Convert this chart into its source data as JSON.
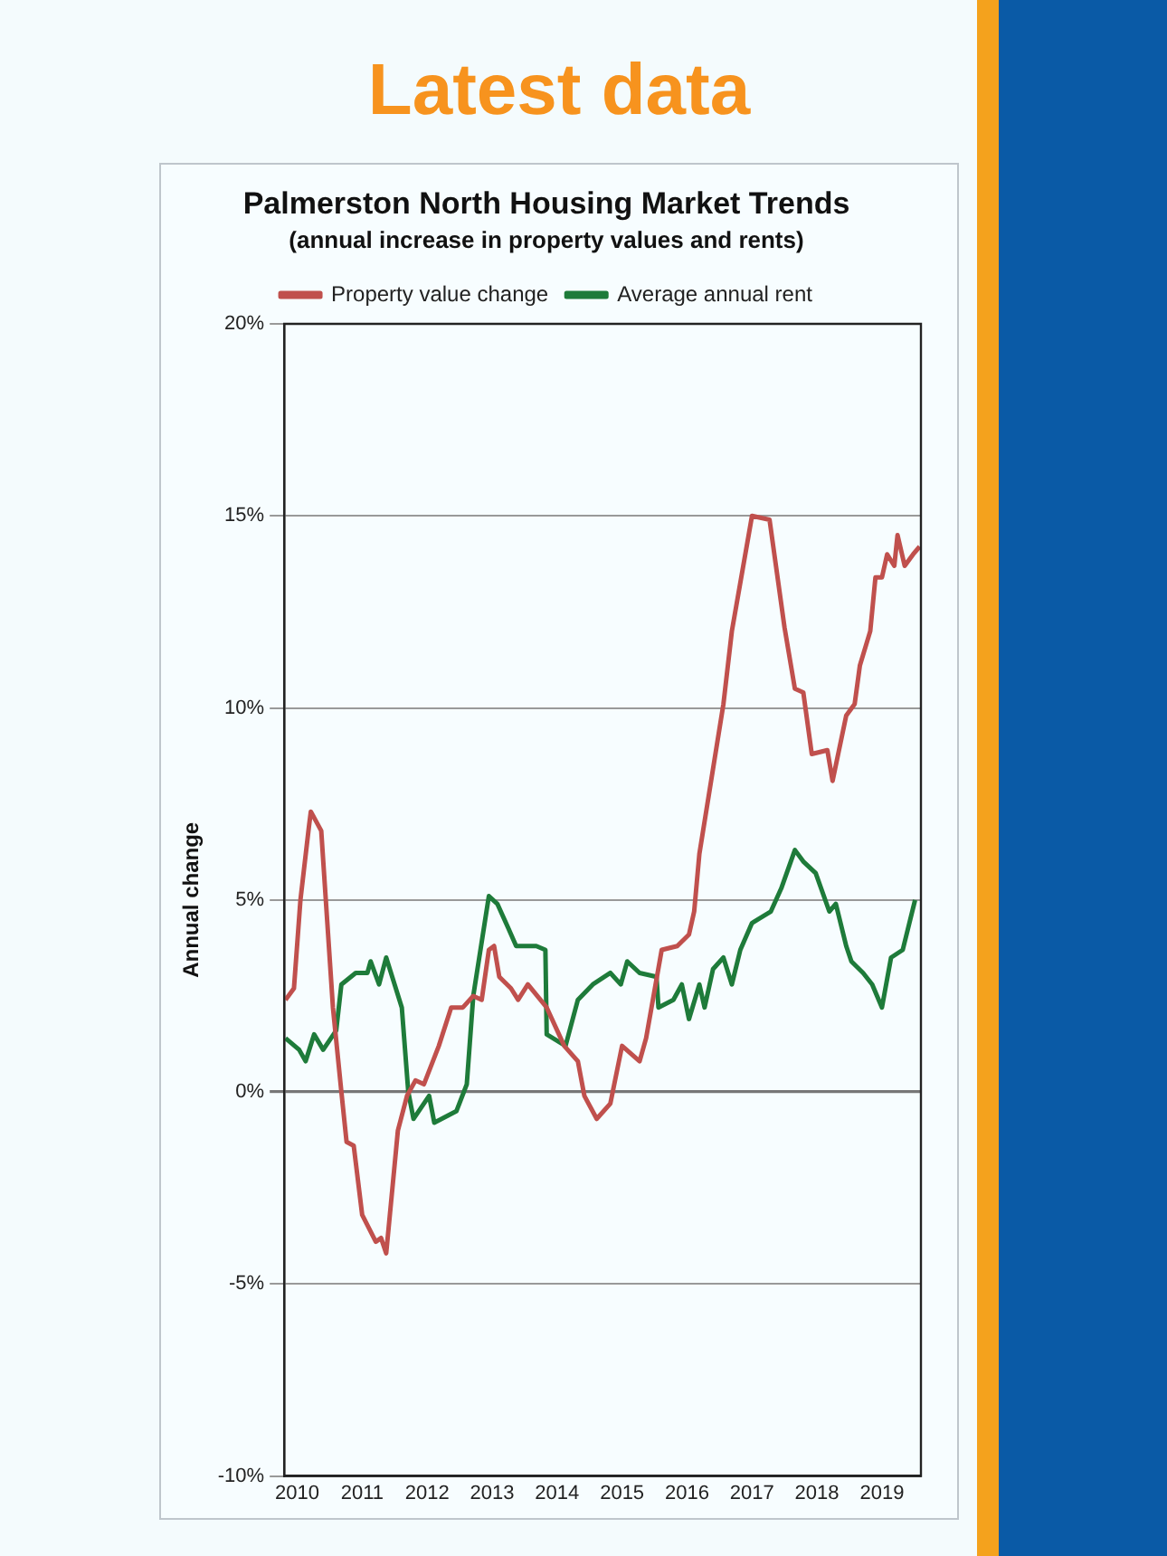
{
  "chart_data": {
    "type": "line",
    "title": "Palmerston North Housing Market Trends",
    "subtitle": "(annual increase in property values and rents)",
    "ylabel": "Annual change",
    "annotations": [
      "Latest data"
    ],
    "xlim": [
      2009.8,
      2019.6
    ],
    "xticks": [
      2010,
      2011,
      2012,
      2013,
      2014,
      2015,
      2016,
      2017,
      2018,
      2019
    ],
    "ylim": [
      -10,
      20
    ],
    "yticks": [
      {
        "value": -10,
        "label": "-10%"
      },
      {
        "value": -5,
        "label": "-5%"
      },
      {
        "value": 0,
        "label": "0%"
      },
      {
        "value": 5,
        "label": "5%"
      },
      {
        "value": 10,
        "label": "10%"
      },
      {
        "value": 15,
        "label": "15%"
      },
      {
        "value": 20,
        "label": "20%"
      }
    ],
    "grid": "y",
    "legend": "top",
    "marker": "none",
    "line_style": "solid",
    "series": [
      {
        "name": "Property value change",
        "color": "#c0504d",
        "x": [
          2009.82,
          2009.95,
          2010.05,
          2010.18,
          2010.21,
          2010.37,
          2010.55,
          2010.68,
          2010.76,
          2010.87,
          2011.0,
          2011.21,
          2011.29,
          2011.37,
          2011.55,
          2011.69,
          2011.82,
          2011.95,
          2012.18,
          2012.37,
          2012.55,
          2012.71,
          2012.84,
          2012.95,
          2013.03,
          2013.11,
          2013.29,
          2013.4,
          2013.55,
          2013.84,
          2014.11,
          2014.32,
          2014.42,
          2014.61,
          2014.82,
          2015.0,
          2015.27,
          2015.37,
          2015.61,
          2015.85,
          2016.03,
          2016.11,
          2016.19,
          2016.56,
          2016.69,
          2017.0,
          2017.27,
          2017.5,
          2017.66,
          2017.79,
          2017.92,
          2018.16,
          2018.24,
          2018.45,
          2018.58,
          2018.66,
          2018.82,
          2018.9,
          2019.0,
          2019.08,
          2019.19,
          2019.24,
          2019.35,
          2019.48,
          2019.58
        ],
        "values": [
          2.4,
          2.7,
          5.0,
          6.9,
          7.3,
          6.8,
          2.2,
          0.0,
          -1.3,
          -1.4,
          -3.2,
          -3.9,
          -3.8,
          -4.2,
          -1.0,
          -0.1,
          0.3,
          0.2,
          1.2,
          2.2,
          2.2,
          2.5,
          2.4,
          3.7,
          3.8,
          3.0,
          2.7,
          2.4,
          2.8,
          2.2,
          1.2,
          0.8,
          -0.1,
          -0.7,
          -0.3,
          1.2,
          0.8,
          1.4,
          3.7,
          3.8,
          4.1,
          4.7,
          6.2,
          10.1,
          12.0,
          15.0,
          14.9,
          12.1,
          10.5,
          10.4,
          8.8,
          8.9,
          8.1,
          9.8,
          10.1,
          11.1,
          12.0,
          13.4,
          13.4,
          14.0,
          13.7,
          14.5,
          13.7,
          14.0,
          14.2
        ]
      },
      {
        "name": "Average annual rent",
        "color": "#1e7b3a",
        "x": [
          2009.82,
          2010.03,
          2010.13,
          2010.26,
          2010.4,
          2010.6,
          2010.68,
          2010.9,
          2011.08,
          2011.13,
          2011.26,
          2011.37,
          2011.61,
          2011.71,
          2011.79,
          2012.03,
          2012.11,
          2012.45,
          2012.61,
          2012.71,
          2012.95,
          2013.08,
          2013.24,
          2013.37,
          2013.68,
          2013.82,
          2013.84,
          2014.13,
          2014.32,
          2014.55,
          2014.82,
          2014.98,
          2015.08,
          2015.27,
          2015.53,
          2015.56,
          2015.79,
          2015.92,
          2016.03,
          2016.19,
          2016.27,
          2016.4,
          2016.56,
          2016.69,
          2016.82,
          2017.0,
          2017.29,
          2017.45,
          2017.66,
          2017.79,
          2017.98,
          2018.19,
          2018.29,
          2018.45,
          2018.53,
          2018.71,
          2018.85,
          2019.0,
          2019.14,
          2019.32,
          2019.51
        ],
        "values": [
          1.4,
          1.1,
          0.8,
          1.5,
          1.1,
          1.6,
          2.8,
          3.1,
          3.1,
          3.4,
          2.8,
          3.5,
          2.2,
          0.0,
          -0.7,
          -0.1,
          -0.8,
          -0.5,
          0.2,
          2.5,
          5.1,
          4.9,
          4.3,
          3.8,
          3.8,
          3.7,
          1.5,
          1.2,
          2.4,
          2.8,
          3.1,
          2.8,
          3.4,
          3.1,
          3.0,
          2.2,
          2.4,
          2.8,
          1.9,
          2.8,
          2.2,
          3.2,
          3.5,
          2.8,
          3.7,
          4.4,
          4.7,
          5.3,
          6.3,
          6.0,
          5.7,
          4.7,
          4.9,
          3.8,
          3.4,
          3.1,
          2.8,
          2.2,
          3.5,
          3.7,
          5.0
        ]
      }
    ]
  }
}
